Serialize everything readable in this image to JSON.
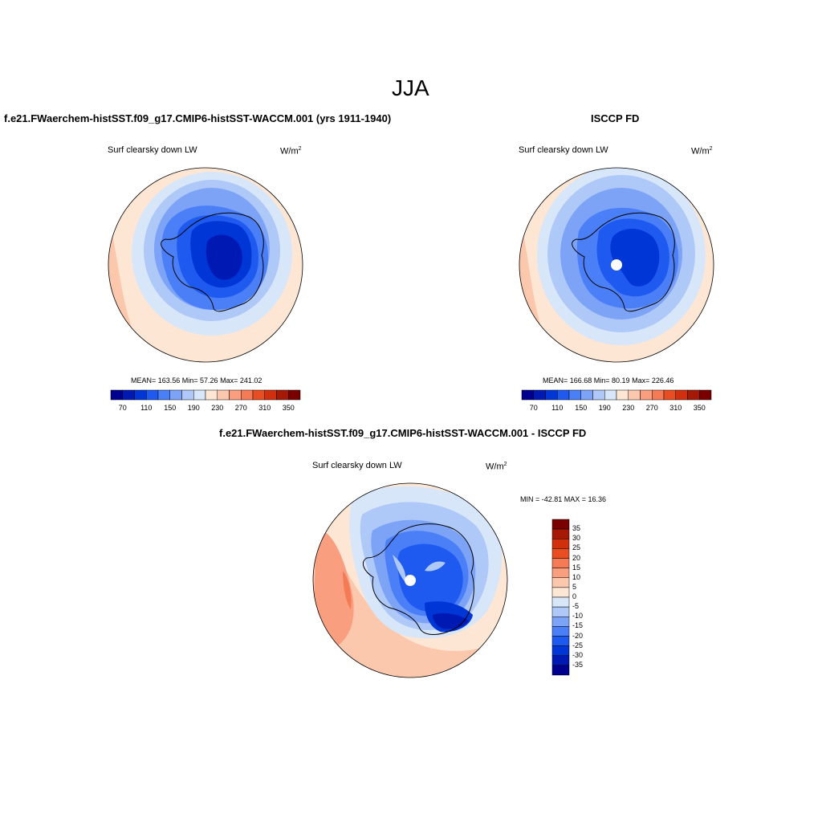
{
  "page_title": "JJA",
  "panels": [
    {
      "heading": "f.e21.FWaerchem-histSST.f09_g17.CMIP6-histSST-WACCM.001 (yrs 1911-1940)",
      "variable": "Surf clearsky down LW",
      "units_base": "W/m",
      "units_exp": "2",
      "stats": "MEAN= 163.56  Min=  57.26  Max= 241.02",
      "colorbar_ticks": [
        "70",
        "110",
        "150",
        "190",
        "230",
        "270",
        "310",
        "350"
      ]
    },
    {
      "heading": "ISCCP FD",
      "variable": "Surf clearsky down LW",
      "units_base": "W/m",
      "units_exp": "2",
      "stats": "MEAN= 166.68  Min=  80.19  Max= 226.46",
      "colorbar_ticks": [
        "70",
        "110",
        "150",
        "190",
        "230",
        "270",
        "310",
        "350"
      ]
    },
    {
      "heading": "f.e21.FWaerchem-histSST.f09_g17.CMIP6-histSST-WACCM.001 - ISCCP FD",
      "variable": "Surf clearsky down LW",
      "units_base": "W/m",
      "units_exp": "2",
      "stats": "MIN = -42.81 MAX =  16.36",
      "colorbar_ticks": [
        "35",
        "30",
        "25",
        "20",
        "15",
        "10",
        "5",
        "0",
        "-5",
        "-10",
        "-15",
        "-20",
        "-25",
        "-30",
        "-35"
      ]
    }
  ],
  "colors": {
    "abs_scale": [
      "#00008f",
      "#0019b3",
      "#0035d6",
      "#1f5af0",
      "#4a7ff7",
      "#7da3f7",
      "#aec8f8",
      "#d8e6fa",
      "#fde7d4",
      "#fbc8ad",
      "#f99f7f",
      "#f47b55",
      "#ea4d22",
      "#d1300f",
      "#a51906",
      "#7a0000"
    ],
    "diff_scale": [
      "#7a0000",
      "#a51906",
      "#d1300f",
      "#ea4d22",
      "#f47b55",
      "#f99f7f",
      "#fbc8ad",
      "#fde7d4",
      "#d8e6fa",
      "#aec8f8",
      "#7da3f7",
      "#4a7ff7",
      "#1f5af0",
      "#0035d6",
      "#0019b3",
      "#00008f"
    ]
  }
}
